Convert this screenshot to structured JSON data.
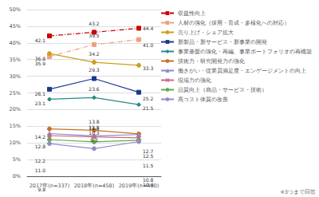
{
  "chart_data": {
    "type": "line",
    "categories": [
      "2017年(n=337)",
      "2018年(n=458)",
      "2019年(n=400)"
    ],
    "series": [
      {
        "name": "収益性向上",
        "color": "#cc0000",
        "marker": "square",
        "line_style": "dashdot",
        "values": [
          42.1,
          43.2,
          44.4
        ],
        "value_labels": [
          "42.1",
          "43.2",
          "44.4"
        ]
      },
      {
        "name": "人材の強化（採用・育成・多様化への対応）",
        "color": "#f0a080",
        "marker": "square",
        "line_style": "dashdot",
        "values": [
          35.9,
          39.5,
          41.0
        ],
        "value_labels": [
          "35.9",
          "39.5",
          "41.0"
        ]
      },
      {
        "name": "売り上げ・シェア拡大",
        "color": "#c8a020",
        "marker": "circle",
        "line_style": "solid",
        "values": [
          36.8,
          34.2,
          33.3
        ],
        "value_labels": [
          "36.8",
          "34.2",
          "33.3"
        ]
      },
      {
        "name": "新製品・新サービス・新事業の開発",
        "color": "#1a3a8a",
        "marker": "square",
        "line_style": "solid",
        "values": [
          26.1,
          29.3,
          25.2
        ],
        "value_labels": [
          "26.1",
          "29.3",
          "25.2"
        ]
      },
      {
        "name": "事業基盤の強化・再編、事業ポートフォリオの再構築",
        "color": "#2a8888",
        "marker": "diamond",
        "line_style": "solid",
        "values": [
          23.1,
          23.6,
          21.5
        ],
        "value_labels": [
          "23.1",
          "23.6",
          "21.5"
        ]
      },
      {
        "name": "技術力・研究開発力の強化",
        "color": "#c87020",
        "marker": "circle",
        "line_style": "solid",
        "values": [
          14.2,
          13.8,
          12.7
        ],
        "value_labels": [
          "14.2",
          "13.8",
          "12.7"
        ]
      },
      {
        "name": "働きがい・従業員満足度・エンゲージメントの向上",
        "color": "#8888cc",
        "marker": "triangle",
        "line_style": "solid",
        "values": [
          12.8,
          12.1,
          12.5
        ],
        "value_labels": [
          "12.8",
          "12.1",
          "12.5"
        ]
      },
      {
        "name": "現場力の強化",
        "color": "#cc6688",
        "marker": "x",
        "line_style": "solid",
        "values": [
          12.2,
          11.8,
          11.5
        ],
        "value_labels": [
          "12.2",
          "11.8",
          "11.5"
        ]
      },
      {
        "name": "品質向上（商品・サービス・技術）",
        "color": "#66aa44",
        "marker": "circle",
        "line_style": "solid",
        "values": [
          11.0,
          10.3,
          10.8
        ],
        "value_labels": [
          "11.0",
          "10.3",
          "10.8"
        ]
      },
      {
        "name": "高コスト体質の改善",
        "color": "#9988cc",
        "marker": "circle",
        "line_style": "solid",
        "values": [
          9.8,
          8.3,
          10.4
        ],
        "value_labels": [
          "9.8",
          "8.3",
          "10.4"
        ]
      }
    ],
    "ylim": [
      0,
      50
    ],
    "yticks": [
      {
        "value": 0,
        "label": "0%"
      },
      {
        "value": 5,
        "label": "5%"
      },
      {
        "value": 10,
        "label": "10%"
      },
      {
        "value": 15,
        "label": "15%"
      },
      {
        "value": 20,
        "label": "20%"
      },
      {
        "value": 25,
        "label": "25%"
      },
      {
        "value": 30,
        "label": "30%"
      },
      {
        "value": 35,
        "label": "35%"
      },
      {
        "value": 40,
        "label": "40%"
      },
      {
        "value": 45,
        "label": "45%"
      },
      {
        "value": 50,
        "label": "50%"
      }
    ],
    "grid": true,
    "legend": "upper right",
    "data_labels": true,
    "annotations": [
      "※3つまで回答"
    ]
  }
}
